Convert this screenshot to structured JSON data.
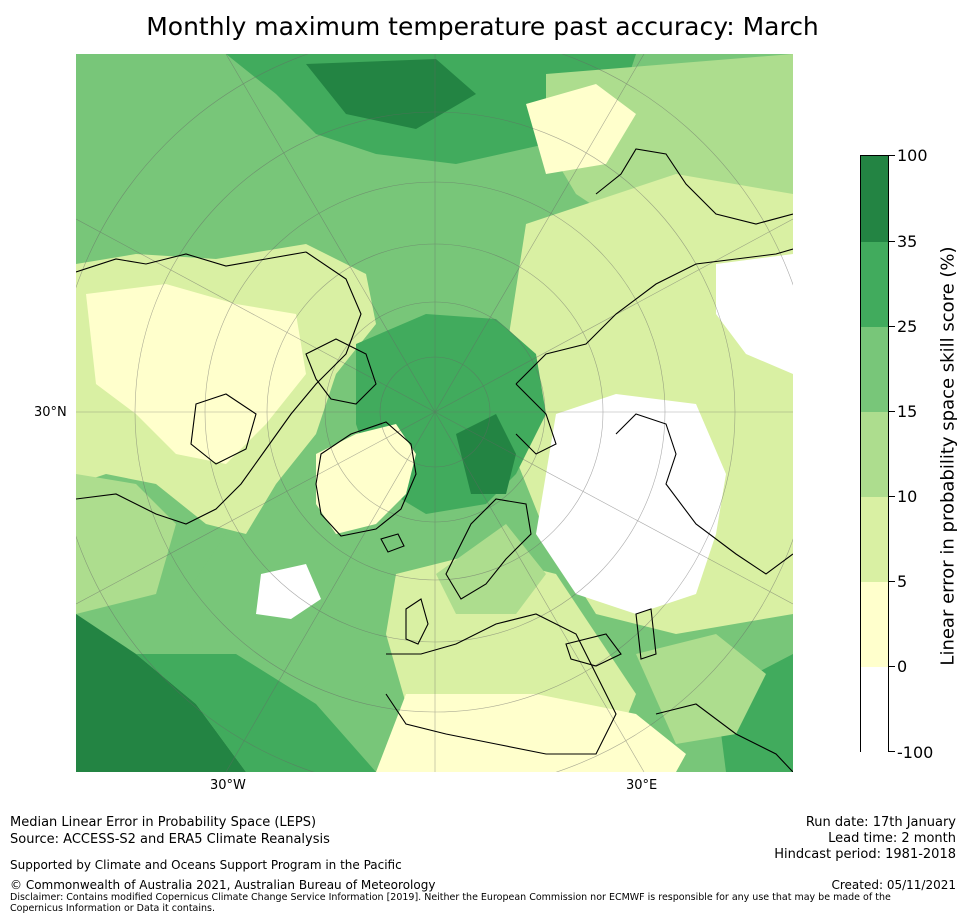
{
  "title": "Monthly maximum temperature past accuracy: March",
  "map": {
    "lat_labels": [
      "30°N"
    ],
    "lon_labels": [
      "30°W",
      "30°E"
    ],
    "colors": {
      "deep": "#238443",
      "dark": "#41ab5d",
      "mid": "#78c679",
      "light": "#addd8e",
      "pale": "#d9f0a3",
      "cream": "#ffffcc",
      "white": "#ffffff",
      "coast": "#000000"
    }
  },
  "colorbar": {
    "title": "Linear error in probability space skill score (%)",
    "ticks": [
      "100",
      "35",
      "25",
      "15",
      "10",
      "5",
      "0",
      "-100"
    ],
    "colors": [
      "#238443",
      "#41ab5d",
      "#78c679",
      "#addd8e",
      "#d9f0a3",
      "#ffffcc",
      "#ffffff"
    ]
  },
  "footer": {
    "left_line1": "Median Linear Error in Probability Space (LEPS)",
    "left_line2": "Source: ACCESS-S2 and ERA5 Climate Reanalysis",
    "supported": "Supported by Climate and Oceans Support Program in the Pacific",
    "copyright": "© Commonwealth of Australia 2021, Australian Bureau of Meteorology",
    "disclaimer": "Disclaimer: Contains modified Copernicus Climate Change Service Information [2019]. Neither the European Commission nor ECMWF is responsible for any use that may be made of the Copernicus Information or Data it contains.",
    "run_date": "Run date: 17th January",
    "lead_time": "Lead time: 2 month",
    "hindcast": "Hindcast period: 1981-2018",
    "created": "Created: 05/11/2021"
  }
}
